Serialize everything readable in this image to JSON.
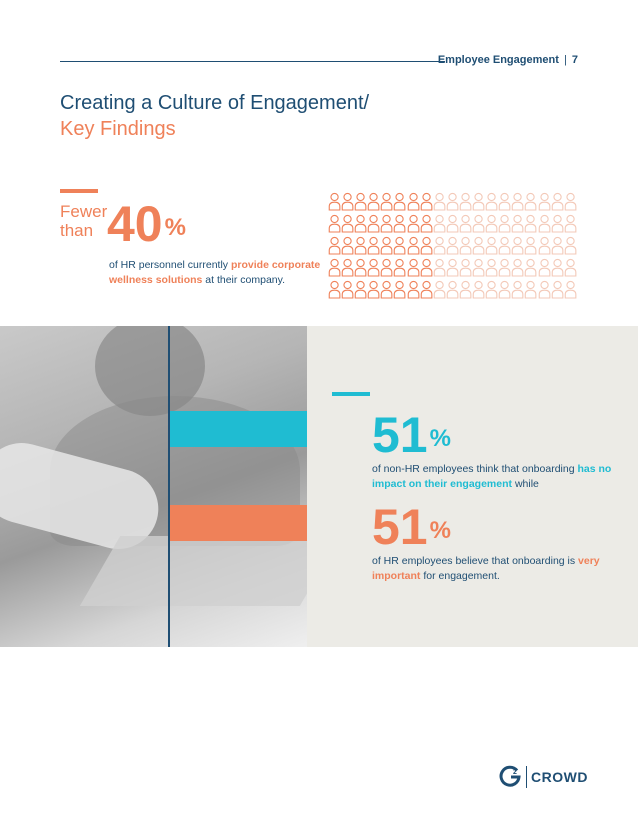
{
  "header": {
    "section": "Employee Engagement",
    "separator": "|",
    "page_number": "7"
  },
  "title": {
    "line1": "Creating a Culture of Engagement/",
    "line2": "Key Findings"
  },
  "stat_wellness": {
    "prefix_line1": "Fewer",
    "prefix_line2": "than",
    "value": "40",
    "unit": "%",
    "desc_before": "of HR personnel currently ",
    "desc_highlight": "provide corporate wellness solutions",
    "desc_after": " at their company."
  },
  "people_grid": {
    "rows": 5,
    "cols": 19,
    "highlighted_per_row": 8,
    "highlight_color": "#ef8159",
    "muted_color": "#f3c9b8"
  },
  "stat_non_hr": {
    "value": "51",
    "unit": "%",
    "desc_before": "of non-HR employees think that onboarding ",
    "desc_highlight": "has no impact on their engagement",
    "desc_after": " while"
  },
  "stat_hr": {
    "value": "51",
    "unit": "%",
    "desc_before": "of HR employees believe that onboarding is ",
    "desc_highlight": "very important",
    "desc_after": " for engagement."
  },
  "logo": {
    "letter": "2",
    "name": "CROWD",
    "icon": "g2-logo-icon"
  },
  "colors": {
    "navy": "#1f4e73",
    "orange": "#ef8159",
    "teal": "#1fbcd2",
    "band": "#ecebe6"
  }
}
